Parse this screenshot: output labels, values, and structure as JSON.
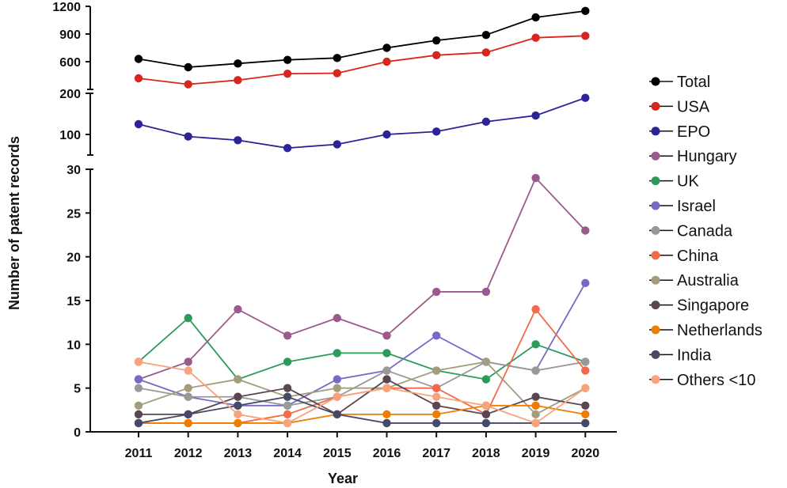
{
  "chart_data": {
    "type": "line",
    "xlabel": "Year",
    "ylabel": "Number of patent records",
    "categories": [
      "2011",
      "2012",
      "2013",
      "2014",
      "2015",
      "2016",
      "2017",
      "2018",
      "2019",
      "2020"
    ],
    "y_segments": [
      {
        "range": [
          0,
          30
        ],
        "ticks": [
          0,
          5,
          10,
          15,
          20,
          25,
          30
        ]
      },
      {
        "range": [
          50,
          200
        ],
        "ticks": [
          100,
          200
        ]
      },
      {
        "range": [
          300,
          1200
        ],
        "ticks": [
          600,
          900,
          1200
        ]
      }
    ],
    "ytick_labels": [
      "0",
      "5",
      "10",
      "15",
      "20",
      "25",
      "30",
      "100",
      "200",
      "600",
      "900",
      "1200"
    ],
    "legend_position": "right",
    "series": [
      {
        "name": "Total",
        "color": "#000000",
        "values": [
          630,
          540,
          580,
          620,
          640,
          750,
          830,
          890,
          1080,
          1150
        ]
      },
      {
        "name": "USA",
        "color": "#d7261e",
        "values": [
          420,
          355,
          400,
          470,
          475,
          600,
          670,
          700,
          860,
          880
        ]
      },
      {
        "name": "EPO",
        "color": "#2b2396",
        "values": [
          125,
          95,
          86,
          67,
          76,
          100,
          107,
          131,
          146,
          189
        ]
      },
      {
        "name": "Hungary",
        "color": "#9b5a8c",
        "values": [
          6,
          8,
          14,
          11,
          13,
          11,
          16,
          16,
          29,
          23
        ]
      },
      {
        "name": "UK",
        "color": "#2b9b5c",
        "values": [
          8,
          13,
          6,
          8,
          9,
          9,
          7,
          6,
          10,
          8
        ]
      },
      {
        "name": "Israel",
        "color": "#7a68c8",
        "values": [
          6,
          4,
          3,
          3,
          6,
          7,
          11,
          8,
          7,
          17
        ]
      },
      {
        "name": "Canada",
        "color": "#999999",
        "values": [
          5,
          4,
          4,
          3,
          4,
          7,
          5,
          8,
          7,
          8
        ]
      },
      {
        "name": "China",
        "color": "#f26a4a",
        "values": [
          1,
          1,
          1,
          2,
          4,
          5,
          5,
          2,
          14,
          7
        ]
      },
      {
        "name": "Australia",
        "color": "#a39d7b",
        "values": [
          3,
          5,
          6,
          4,
          5,
          5,
          7,
          8,
          2,
          5
        ]
      },
      {
        "name": "Singapore",
        "color": "#5a4652",
        "values": [
          2,
          2,
          4,
          5,
          2,
          6,
          3,
          2,
          4,
          3
        ]
      },
      {
        "name": "Netherlands",
        "color": "#ee7d00",
        "values": [
          1,
          1,
          1,
          1,
          2,
          2,
          2,
          3,
          3,
          2
        ]
      },
      {
        "name": "India",
        "color": "#454a68",
        "values": [
          1,
          2,
          3,
          4,
          2,
          1,
          1,
          1,
          1,
          1
        ]
      },
      {
        "name": "Others <10",
        "color": "#f7a37c",
        "values": [
          8,
          7,
          2,
          1,
          4,
          5,
          4,
          3,
          1,
          5
        ]
      }
    ]
  }
}
